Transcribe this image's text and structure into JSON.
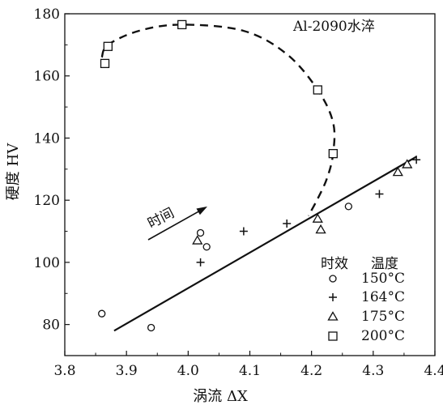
{
  "chart_data": {
    "type": "scatter",
    "title": "",
    "xlabel": "涡流 ΔX",
    "ylabel": "硬度 HV",
    "xlim": [
      3.8,
      4.4
    ],
    "ylim": [
      70,
      180
    ],
    "x_ticks": [
      "3.8",
      "3.9",
      "4.0",
      "4.1",
      "4.2",
      "4.3",
      "4.4"
    ],
    "y_ticks": [
      "80",
      "100",
      "120",
      "140",
      "160",
      "180"
    ],
    "annotation": "Al-2090水淬",
    "arrow_label": "时间",
    "legend": {
      "placement": "bottom-right",
      "header_col1": "时效",
      "header_col2": "温度"
    },
    "series": [
      {
        "name": "150°C",
        "marker": "circle",
        "points": [
          [
            3.86,
            83.5
          ],
          [
            3.94,
            79
          ],
          [
            4.02,
            109.5
          ],
          [
            4.03,
            105
          ],
          [
            4.26,
            118
          ]
        ]
      },
      {
        "name": "164°C",
        "marker": "plus",
        "points": [
          [
            4.02,
            100
          ],
          [
            4.09,
            110
          ],
          [
            4.16,
            112.5
          ],
          [
            4.31,
            122
          ],
          [
            4.37,
            133
          ]
        ]
      },
      {
        "name": "175°C",
        "marker": "triangle",
        "points": [
          [
            4.015,
            107
          ],
          [
            4.21,
            114
          ],
          [
            4.215,
            110.5
          ],
          [
            4.34,
            129
          ],
          [
            4.355,
            131.5
          ]
        ]
      },
      {
        "name": "200°C",
        "marker": "square",
        "points": [
          [
            3.865,
            164
          ],
          [
            3.87,
            169.5
          ],
          [
            3.99,
            176.5
          ],
          [
            4.21,
            155.5
          ],
          [
            4.235,
            135
          ]
        ]
      }
    ],
    "trend_line": [
      [
        3.88,
        78
      ],
      [
        4.37,
        134
      ]
    ],
    "dashed_curve": [
      [
        3.86,
        166
      ],
      [
        3.87,
        170
      ],
      [
        3.92,
        174.5
      ],
      [
        3.99,
        176.5
      ],
      [
        4.09,
        174.5
      ],
      [
        4.16,
        167
      ],
      [
        4.21,
        155.5
      ],
      [
        4.235,
        145
      ],
      [
        4.235,
        135
      ],
      [
        4.225,
        127
      ],
      [
        4.21,
        120.5
      ],
      [
        4.195,
        115
      ]
    ]
  }
}
